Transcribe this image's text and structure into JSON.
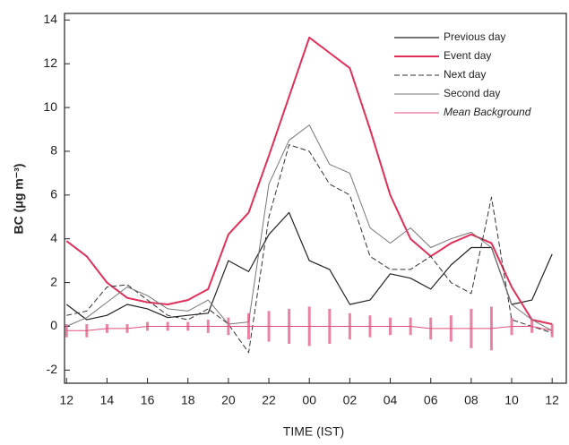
{
  "chart_data": {
    "type": "line",
    "x_label": "TIME (IST)",
    "y_label": "BC (μg m⁻³)",
    "x": [
      12,
      13,
      14,
      15,
      16,
      17,
      18,
      19,
      20,
      21,
      22,
      23,
      24,
      25,
      26,
      27,
      28,
      29,
      30,
      31,
      32,
      33,
      34,
      35,
      36
    ],
    "xlim": [
      11.9,
      36.7
    ],
    "xticks": [
      12,
      14,
      16,
      18,
      20,
      22,
      {
        "value": 24,
        "label": "00"
      },
      {
        "value": 26,
        "label": "02"
      },
      {
        "value": 28,
        "label": "04"
      },
      {
        "value": 30,
        "label": "06"
      },
      {
        "value": 32,
        "label": "08"
      },
      {
        "value": 34,
        "label": "10"
      },
      {
        "value": 36,
        "label": "12"
      }
    ],
    "ylim": [
      -2.6,
      14.3
    ],
    "yticks": [
      -2,
      0,
      2,
      4,
      6,
      8,
      10,
      12,
      14
    ],
    "legend": "upper right",
    "series": [
      {
        "name": "Previous day",
        "color": "#222222",
        "width": 1.2,
        "dash": "none",
        "values": [
          1.0,
          0.3,
          0.5,
          1.0,
          0.8,
          0.4,
          0.5,
          0.6,
          3.0,
          2.5,
          4.2,
          5.2,
          3.0,
          2.6,
          1.0,
          1.2,
          2.4,
          2.2,
          1.7,
          2.8,
          3.6,
          3.6,
          1.0,
          1.2,
          3.3
        ]
      },
      {
        "name": "Event day",
        "color": "#e0305a",
        "width": 2,
        "dash": "none",
        "values": [
          3.9,
          3.2,
          2.0,
          1.3,
          1.1,
          1.0,
          1.2,
          1.7,
          4.2,
          5.2,
          7.8,
          10.5,
          13.2,
          12.5,
          11.8,
          9.0,
          6.0,
          4.0,
          3.2,
          3.8,
          4.2,
          3.8,
          1.8,
          0.3,
          0.1
        ]
      },
      {
        "name": "Next day",
        "color": "#333333",
        "width": 1,
        "dash": "6 3",
        "values": [
          0.5,
          0.7,
          1.8,
          1.9,
          1.2,
          0.5,
          0.3,
          0.8,
          0.1,
          -1.2,
          5.0,
          8.3,
          8.0,
          6.5,
          6.0,
          3.2,
          2.6,
          2.6,
          3.2,
          2.0,
          1.5,
          5.9,
          0.3,
          0.0,
          -0.3
        ]
      },
      {
        "name": "Second day",
        "color": "#777777",
        "width": 1,
        "dash": "none",
        "values": [
          0.0,
          0.4,
          1.1,
          1.8,
          1.4,
          0.8,
          0.7,
          1.2,
          0.1,
          0.2,
          6.5,
          8.5,
          9.2,
          7.4,
          7.0,
          4.5,
          3.8,
          4.5,
          3.6,
          4.0,
          4.3,
          3.6,
          1.0,
          0.3,
          -0.2
        ]
      },
      {
        "name": "Mean Background",
        "color": "#e0507a",
        "width": 1,
        "dash": "none",
        "italic": true,
        "values": [
          -0.2,
          -0.2,
          -0.1,
          -0.1,
          0.0,
          0.0,
          0.0,
          0.0,
          0.0,
          0.0,
          0.0,
          0.0,
          0.0,
          0.0,
          0.0,
          0.0,
          0.0,
          0.0,
          -0.1,
          -0.1,
          -0.1,
          -0.1,
          0.0,
          0.0,
          -0.2
        ],
        "errors": [
          0.3,
          0.3,
          0.2,
          0.2,
          0.2,
          0.2,
          0.2,
          0.3,
          0.4,
          0.6,
          0.7,
          0.8,
          0.9,
          0.8,
          0.6,
          0.5,
          0.4,
          0.4,
          0.5,
          0.6,
          0.9,
          1.0,
          0.4,
          0.3,
          0.3
        ]
      }
    ]
  }
}
